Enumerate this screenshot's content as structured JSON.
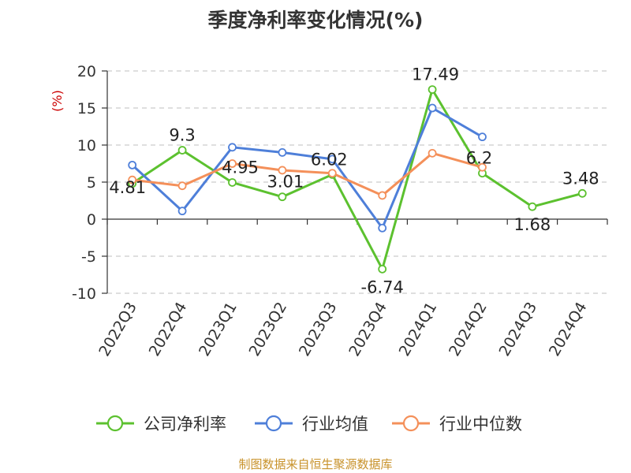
{
  "chart_data": {
    "type": "line",
    "title": "季度净利率变化情况(%)",
    "ylabel": "(%)",
    "xlabel": "",
    "categories": [
      "2022Q3",
      "2022Q4",
      "2023Q1",
      "2023Q2",
      "2023Q3",
      "2023Q4",
      "2024Q1",
      "2024Q2",
      "2024Q3",
      "2024Q4"
    ],
    "ylim": [
      -10,
      20
    ],
    "yticks": [
      20,
      15,
      10,
      5,
      0,
      -5,
      -10
    ],
    "grid": true,
    "legend_position": "bottom",
    "series": [
      {
        "name": "公司净利率",
        "color": "#5cc12f",
        "values": [
          4.81,
          9.3,
          4.95,
          3.01,
          6.02,
          -6.74,
          17.49,
          6.2,
          1.68,
          3.48
        ],
        "labels": [
          "4.81",
          "9.3",
          "4.95",
          "3.01",
          "6.02",
          "-6.74",
          "17.49",
          "6.2",
          "1.68",
          "3.48"
        ]
      },
      {
        "name": "行业均值",
        "color": "#4e7fd9",
        "values": [
          7.3,
          1.1,
          9.7,
          9.0,
          8.1,
          -1.2,
          15.0,
          11.1,
          null,
          null
        ]
      },
      {
        "name": "行业中位数",
        "color": "#f4905a",
        "values": [
          5.3,
          4.5,
          7.5,
          6.6,
          6.2,
          3.2,
          8.9,
          7.0,
          null,
          null
        ]
      }
    ]
  },
  "source_note": "制图数据来自恒生聚源数据库"
}
